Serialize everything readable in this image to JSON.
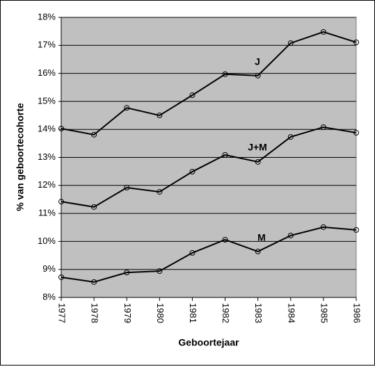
{
  "chart_data": {
    "type": "line",
    "x_label": "Geboortejaar",
    "y_label": "% van geboortecohorte",
    "categories": [
      "1977",
      "1978",
      "1979",
      "1980",
      "1981",
      "1982",
      "1983",
      "1984",
      "1985",
      "1986"
    ],
    "series": [
      {
        "name": "J",
        "color": "#000000",
        "values": [
          14.03,
          13.81,
          14.77,
          14.5,
          15.22,
          15.97,
          15.92,
          17.08,
          17.48,
          17.11
        ]
      },
      {
        "name": "J+M",
        "color": "#000000",
        "values": [
          11.42,
          11.23,
          11.92,
          11.77,
          12.49,
          13.09,
          12.84,
          13.73,
          14.08,
          13.88
        ]
      },
      {
        "name": "M",
        "color": "#000000",
        "values": [
          8.72,
          8.55,
          8.89,
          8.94,
          9.59,
          10.06,
          9.64,
          10.21,
          10.51,
          10.41
        ]
      }
    ],
    "ylim": [
      8,
      18
    ],
    "yticks": [
      {
        "value": 8,
        "label": "8%"
      },
      {
        "value": 9,
        "label": "9%"
      },
      {
        "value": 10,
        "label": "10%"
      },
      {
        "value": 11,
        "label": "11%"
      },
      {
        "value": 12,
        "label": "12%"
      },
      {
        "value": 13,
        "label": "13%"
      },
      {
        "value": 14,
        "label": "14%"
      },
      {
        "value": 15,
        "label": "15%"
      },
      {
        "value": 16,
        "label": "16%"
      },
      {
        "value": 17,
        "label": "17%"
      },
      {
        "value": 18,
        "label": "18%"
      }
    ],
    "grid": true,
    "plot_background": "#c0c0c0"
  }
}
